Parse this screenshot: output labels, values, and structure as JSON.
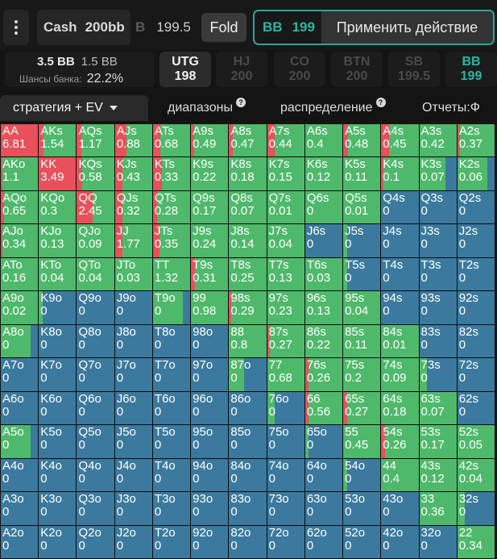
{
  "colors": {
    "raise": "#e8505a",
    "call": "#4fb96b",
    "fold": "#3b7a9e",
    "accent": "#2ab6a8"
  },
  "topbar": {
    "menu_icon": "more-vertical-icon",
    "game_type": "Cash",
    "stack": "200bb",
    "prev_action_partial": "B",
    "prev_action_amount": "199.5",
    "fold_label": "Fold",
    "bb_label": "BB",
    "bb_amount": "199",
    "apply_label": "Применить действие"
  },
  "pot": {
    "pot_bb": "3.5 BB",
    "call_bb": "1.5 BB",
    "equity_label": "Шансы банка:",
    "equity_value": "22.2%"
  },
  "positions": [
    {
      "name": "UTG",
      "stack": "198",
      "state": "active"
    },
    {
      "name": "HJ",
      "stack": "200",
      "state": "dim"
    },
    {
      "name": "CO",
      "stack": "200",
      "state": "dim"
    },
    {
      "name": "BTN",
      "stack": "200",
      "state": "dim"
    },
    {
      "name": "SB",
      "stack": "199.5",
      "state": "dim"
    },
    {
      "name": "BB",
      "stack": "199",
      "state": "teal"
    }
  ],
  "tabs": {
    "strategy": "стратегия + EV",
    "ranges": "диапазоны",
    "distribution": "распределение",
    "reports": "Отчеты:Ф"
  },
  "grid": [
    [
      [
        "AA",
        "6.81",
        1,
        0
      ],
      [
        "AKs",
        "1.54",
        0.12,
        0.88
      ],
      [
        "AQs",
        "1.17",
        0.12,
        0.88
      ],
      [
        "AJs",
        "0.88",
        0.3,
        0.7
      ],
      [
        "ATs",
        "0.68",
        0.2,
        0.8
      ],
      [
        "A9s",
        "0.49",
        0.08,
        0.92
      ],
      [
        "A8s",
        "0.47",
        0.1,
        0.9
      ],
      [
        "A7s",
        "0.44",
        0.2,
        0.8
      ],
      [
        "A6s",
        "0.4",
        0,
        1
      ],
      [
        "A5s",
        "0.48",
        0.12,
        0.88
      ],
      [
        "A4s",
        "0.45",
        0.2,
        0.8
      ],
      [
        "A3s",
        "0.42",
        0,
        1
      ],
      [
        "A2s",
        "0.37",
        0.08,
        0.92
      ]
    ],
    [
      [
        "AKo",
        "1.1",
        0.05,
        0.95
      ],
      [
        "KK",
        "3.49",
        1,
        0
      ],
      [
        "KQs",
        "0.58",
        0.14,
        0.86
      ],
      [
        "KJs",
        "0.43",
        0.2,
        0.8
      ],
      [
        "KTs",
        "0.33",
        0.25,
        0.75
      ],
      [
        "K9s",
        "0.22",
        0,
        1
      ],
      [
        "K8s",
        "0.18",
        0,
        1
      ],
      [
        "K7s",
        "0.15",
        0,
        1
      ],
      [
        "K6s",
        "0.12",
        0,
        1
      ],
      [
        "K5s",
        "0.11",
        0,
        1
      ],
      [
        "K4s",
        "0.1",
        0.05,
        0.95
      ],
      [
        "K3s",
        "0.07",
        0,
        0.7
      ],
      [
        "K2s",
        "0.06",
        0,
        0.8
      ]
    ],
    [
      [
        "AQo",
        "0.65",
        0.08,
        0.92
      ],
      [
        "KQo",
        "0.3",
        0,
        1
      ],
      [
        "QQ",
        "2.45",
        0.42,
        0.58
      ],
      [
        "QJs",
        "0.32",
        0.2,
        0.8
      ],
      [
        "QTs",
        "0.28",
        0.12,
        0.88
      ],
      [
        "Q9s",
        "0.17",
        0,
        1
      ],
      [
        "Q8s",
        "0.07",
        0,
        1
      ],
      [
        "Q7s",
        "0.01",
        0,
        1
      ],
      [
        "Q6s",
        "0",
        0,
        1
      ],
      [
        "Q5s",
        "0.01",
        0,
        1
      ],
      [
        "Q4s",
        "0",
        0,
        0
      ],
      [
        "Q3s",
        "0",
        0,
        0
      ],
      [
        "Q2s",
        "0",
        0,
        0
      ]
    ],
    [
      [
        "AJo",
        "0.34",
        0.05,
        0.95
      ],
      [
        "KJo",
        "0.13",
        0,
        1
      ],
      [
        "QJo",
        "0.09",
        0,
        1
      ],
      [
        "JJ",
        "1.77",
        0.2,
        0.8
      ],
      [
        "JTs",
        "0.35",
        0.18,
        0.82
      ],
      [
        "J9s",
        "0.24",
        0,
        1
      ],
      [
        "J8s",
        "0.14",
        0,
        1
      ],
      [
        "J7s",
        "0.04",
        0,
        1
      ],
      [
        "J6s",
        "0",
        0,
        0
      ],
      [
        "J5s",
        "0",
        0,
        0.1
      ],
      [
        "J4s",
        "0",
        0,
        0
      ],
      [
        "J3s",
        "0",
        0,
        0
      ],
      [
        "J2s",
        "0",
        0,
        0
      ]
    ],
    [
      [
        "ATo",
        "0.16",
        0,
        1
      ],
      [
        "KTo",
        "0.04",
        0,
        1
      ],
      [
        "QTo",
        "0.04",
        0,
        1
      ],
      [
        "JTo",
        "0.03",
        0,
        1
      ],
      [
        "TT",
        "1.32",
        0,
        1
      ],
      [
        "T9s",
        "0.31",
        0.1,
        0.9
      ],
      [
        "T8s",
        "0.25",
        0,
        1
      ],
      [
        "T7s",
        "0.13",
        0,
        1
      ],
      [
        "T6s",
        "0.03",
        0,
        1
      ],
      [
        "T5s",
        "0",
        0,
        0.1
      ],
      [
        "T4s",
        "0",
        0,
        0
      ],
      [
        "T3s",
        "0",
        0,
        0
      ],
      [
        "T2s",
        "0",
        0,
        0
      ]
    ],
    [
      [
        "A9o",
        "0.02",
        0,
        1
      ],
      [
        "K9o",
        "0",
        0,
        0.1
      ],
      [
        "Q9o",
        "0",
        0,
        0
      ],
      [
        "J9o",
        "0",
        0,
        0
      ],
      [
        "T9o",
        "0",
        0,
        0.8
      ],
      [
        "99",
        "0.98",
        0,
        1
      ],
      [
        "98s",
        "0.29",
        0.06,
        0.94
      ],
      [
        "97s",
        "0.23",
        0,
        1
      ],
      [
        "96s",
        "0.13",
        0,
        1
      ],
      [
        "95s",
        "0.04",
        0,
        1
      ],
      [
        "94s",
        "0",
        0,
        0
      ],
      [
        "93s",
        "0",
        0,
        0
      ],
      [
        "92s",
        "0",
        0,
        0
      ]
    ],
    [
      [
        "A8o",
        "0",
        0,
        0.8
      ],
      [
        "K8o",
        "0",
        0,
        0
      ],
      [
        "Q8o",
        "0",
        0,
        0
      ],
      [
        "J8o",
        "0",
        0,
        0
      ],
      [
        "T8o",
        "0",
        0,
        0
      ],
      [
        "98o",
        "0",
        0,
        0
      ],
      [
        "88",
        "0.8",
        0,
        1
      ],
      [
        "87s",
        "0.27",
        0.08,
        0.92
      ],
      [
        "86s",
        "0.22",
        0,
        1
      ],
      [
        "85s",
        "0.11",
        0,
        1
      ],
      [
        "84s",
        "0.01",
        0,
        1
      ],
      [
        "83s",
        "0",
        0,
        0
      ],
      [
        "82s",
        "0",
        0,
        0
      ]
    ],
    [
      [
        "A7o",
        "0",
        0,
        0
      ],
      [
        "K7o",
        "0",
        0,
        0
      ],
      [
        "Q7o",
        "0",
        0,
        0
      ],
      [
        "J7o",
        "0",
        0,
        0
      ],
      [
        "T7o",
        "0",
        0,
        0
      ],
      [
        "97o",
        "0",
        0,
        0
      ],
      [
        "87o",
        "0",
        0,
        0.4
      ],
      [
        "77",
        "0.68",
        0,
        1
      ],
      [
        "76s",
        "0.26",
        0.1,
        0.9
      ],
      [
        "75s",
        "0.2",
        0,
        1
      ],
      [
        "74s",
        "0.09",
        0,
        1
      ],
      [
        "73s",
        "0",
        0,
        0.2
      ],
      [
        "72s",
        "0",
        0,
        0
      ]
    ],
    [
      [
        "A6o",
        "0",
        0,
        0
      ],
      [
        "K6o",
        "0",
        0,
        0
      ],
      [
        "Q6o",
        "0",
        0,
        0
      ],
      [
        "J6o",
        "0",
        0,
        0
      ],
      [
        "T6o",
        "0",
        0,
        0
      ],
      [
        "96o",
        "0",
        0,
        0
      ],
      [
        "86o",
        "0",
        0,
        0
      ],
      [
        "76o",
        "0",
        0,
        0.2
      ],
      [
        "66",
        "0.56",
        0.1,
        0.9
      ],
      [
        "65s",
        "0.27",
        0.1,
        0.9
      ],
      [
        "64s",
        "0.18",
        0,
        1
      ],
      [
        "63s",
        "0.07",
        0,
        1
      ],
      [
        "62s",
        "0",
        0,
        0
      ]
    ],
    [
      [
        "A5o",
        "0",
        0,
        0.8
      ],
      [
        "K5o",
        "0",
        0,
        0
      ],
      [
        "Q5o",
        "0",
        0,
        0
      ],
      [
        "J5o",
        "0",
        0,
        0
      ],
      [
        "T5o",
        "0",
        0,
        0
      ],
      [
        "95o",
        "0",
        0,
        0
      ],
      [
        "85o",
        "0",
        0,
        0
      ],
      [
        "75o",
        "0",
        0,
        0
      ],
      [
        "65o",
        "0",
        0,
        0.1
      ],
      [
        "55",
        "0.45",
        0,
        1
      ],
      [
        "54s",
        "0.26",
        0.1,
        0.9
      ],
      [
        "53s",
        "0.17",
        0,
        1
      ],
      [
        "52s",
        "0.05",
        0,
        1
      ]
    ],
    [
      [
        "A4o",
        "0",
        0,
        0
      ],
      [
        "K4o",
        "0",
        0,
        0
      ],
      [
        "Q4o",
        "0",
        0,
        0
      ],
      [
        "J4o",
        "0",
        0,
        0
      ],
      [
        "T4o",
        "0",
        0,
        0
      ],
      [
        "94o",
        "0",
        0,
        0
      ],
      [
        "84o",
        "0",
        0,
        0
      ],
      [
        "74o",
        "0",
        0,
        0
      ],
      [
        "64o",
        "0",
        0,
        0
      ],
      [
        "54o",
        "0",
        0,
        0.1
      ],
      [
        "44",
        "0.4",
        0,
        1
      ],
      [
        "43s",
        "0.12",
        0,
        1
      ],
      [
        "42s",
        "0.04",
        0,
        1
      ]
    ],
    [
      [
        "A3o",
        "0",
        0,
        0
      ],
      [
        "K3o",
        "0",
        0,
        0
      ],
      [
        "Q3o",
        "0",
        0,
        0
      ],
      [
        "J3o",
        "0",
        0,
        0
      ],
      [
        "T3o",
        "0",
        0,
        0
      ],
      [
        "93o",
        "0",
        0,
        0
      ],
      [
        "83o",
        "0",
        0,
        0
      ],
      [
        "73o",
        "0",
        0,
        0
      ],
      [
        "63o",
        "0",
        0,
        0
      ],
      [
        "53o",
        "0",
        0,
        0
      ],
      [
        "43o",
        "0",
        0,
        0
      ],
      [
        "33",
        "0.36",
        0,
        1
      ],
      [
        "32s",
        "0",
        0,
        0.2
      ]
    ],
    [
      [
        "A2o",
        "0",
        0,
        0
      ],
      [
        "K2o",
        "0",
        0,
        0
      ],
      [
        "Q2o",
        "0",
        0,
        0
      ],
      [
        "J2o",
        "0",
        0,
        0
      ],
      [
        "T2o",
        "0",
        0,
        0
      ],
      [
        "92o",
        "0",
        0,
        0
      ],
      [
        "82o",
        "0",
        0,
        0
      ],
      [
        "72o",
        "0",
        0,
        0
      ],
      [
        "62o",
        "0",
        0,
        0
      ],
      [
        "52o",
        "0",
        0,
        0
      ],
      [
        "42o",
        "0",
        0,
        0
      ],
      [
        "32o",
        "0",
        0,
        0
      ],
      [
        "22",
        "0.34",
        0,
        1
      ]
    ]
  ]
}
